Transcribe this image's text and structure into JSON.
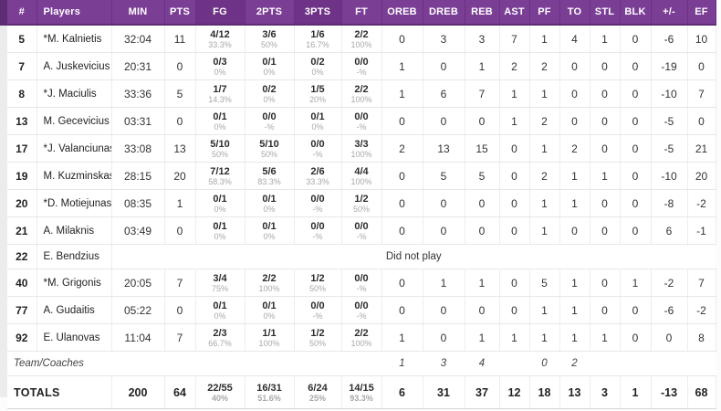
{
  "colors": {
    "header_bg": "#7b3e95",
    "header_alt": "#6e3386",
    "header_dark_edge": "#5e2c75",
    "gutter": "#ececec",
    "pct_text": "#a8a8a8",
    "row_border": "#e7e7e7"
  },
  "table": {
    "columns": [
      "#",
      "Players",
      "MIN",
      "PTS",
      "FG",
      "2PTS",
      "3PTS",
      "FT",
      "OREB",
      "DREB",
      "REB",
      "AST",
      "PF",
      "TO",
      "STL",
      "BLK",
      "+/-",
      "EF"
    ],
    "rows": [
      {
        "type": "player",
        "num": "5",
        "name": "*M. Kalnietis",
        "min": "32:04",
        "pts": "11",
        "fg": "4/12",
        "fg_pct": "33.3%",
        "p2": "3/6",
        "p2_pct": "50%",
        "p3": "1/6",
        "p3_pct": "16.7%",
        "ft": "2/2",
        "ft_pct": "100%",
        "oreb": "0",
        "dreb": "3",
        "reb": "3",
        "ast": "7",
        "pf": "1",
        "to": "4",
        "stl": "1",
        "blk": "0",
        "pm": "-6",
        "ef": "10"
      },
      {
        "type": "player",
        "num": "7",
        "name": "A. Juskevicius",
        "min": "20:31",
        "pts": "0",
        "fg": "0/3",
        "fg_pct": "0%",
        "p2": "0/1",
        "p2_pct": "0%",
        "p3": "0/2",
        "p3_pct": "0%",
        "ft": "0/0",
        "ft_pct": "-%",
        "oreb": "1",
        "dreb": "0",
        "reb": "1",
        "ast": "2",
        "pf": "2",
        "to": "0",
        "stl": "0",
        "blk": "0",
        "pm": "-19",
        "ef": "0"
      },
      {
        "type": "player",
        "num": "8",
        "name": "*J. Maciulis",
        "min": "33:36",
        "pts": "5",
        "fg": "1/7",
        "fg_pct": "14.3%",
        "p2": "0/2",
        "p2_pct": "0%",
        "p3": "1/5",
        "p3_pct": "20%",
        "ft": "2/2",
        "ft_pct": "100%",
        "oreb": "1",
        "dreb": "6",
        "reb": "7",
        "ast": "1",
        "pf": "1",
        "to": "0",
        "stl": "0",
        "blk": "0",
        "pm": "-10",
        "ef": "7"
      },
      {
        "type": "player",
        "num": "13",
        "name": "M. Gecevicius",
        "min": "03:31",
        "pts": "0",
        "fg": "0/1",
        "fg_pct": "0%",
        "p2": "0/0",
        "p2_pct": "-%",
        "p3": "0/1",
        "p3_pct": "0%",
        "ft": "0/0",
        "ft_pct": "-%",
        "oreb": "0",
        "dreb": "0",
        "reb": "0",
        "ast": "1",
        "pf": "2",
        "to": "0",
        "stl": "0",
        "blk": "0",
        "pm": "-5",
        "ef": "0"
      },
      {
        "type": "player",
        "num": "17",
        "name": "*J. Valanciunas",
        "min": "33:08",
        "pts": "13",
        "fg": "5/10",
        "fg_pct": "50%",
        "p2": "5/10",
        "p2_pct": "50%",
        "p3": "0/0",
        "p3_pct": "-%",
        "ft": "3/3",
        "ft_pct": "100%",
        "oreb": "2",
        "dreb": "13",
        "reb": "15",
        "ast": "0",
        "pf": "1",
        "to": "2",
        "stl": "0",
        "blk": "0",
        "pm": "-5",
        "ef": "21"
      },
      {
        "type": "player",
        "num": "19",
        "name": "M. Kuzminskas",
        "min": "28:15",
        "pts": "20",
        "fg": "7/12",
        "fg_pct": "58.3%",
        "p2": "5/6",
        "p2_pct": "83.3%",
        "p3": "2/6",
        "p3_pct": "33.3%",
        "ft": "4/4",
        "ft_pct": "100%",
        "oreb": "0",
        "dreb": "5",
        "reb": "5",
        "ast": "0",
        "pf": "2",
        "to": "1",
        "stl": "1",
        "blk": "0",
        "pm": "-10",
        "ef": "20"
      },
      {
        "type": "player",
        "num": "20",
        "name": "*D. Motiejunas",
        "min": "08:35",
        "pts": "1",
        "fg": "0/1",
        "fg_pct": "0%",
        "p2": "0/1",
        "p2_pct": "0%",
        "p3": "0/0",
        "p3_pct": "-%",
        "ft": "1/2",
        "ft_pct": "50%",
        "oreb": "0",
        "dreb": "0",
        "reb": "0",
        "ast": "0",
        "pf": "1",
        "to": "1",
        "stl": "0",
        "blk": "0",
        "pm": "-8",
        "ef": "-2"
      },
      {
        "type": "player",
        "num": "21",
        "name": "A. Milaknis",
        "min": "03:49",
        "pts": "0",
        "fg": "0/1",
        "fg_pct": "0%",
        "p2": "0/1",
        "p2_pct": "0%",
        "p3": "0/0",
        "p3_pct": "-%",
        "ft": "0/0",
        "ft_pct": "-%",
        "oreb": "0",
        "dreb": "0",
        "reb": "0",
        "ast": "0",
        "pf": "1",
        "to": "0",
        "stl": "0",
        "blk": "0",
        "pm": "6",
        "ef": "-1"
      },
      {
        "type": "dnp",
        "num": "22",
        "name": "E. Bendzius",
        "text": "Did not play"
      },
      {
        "type": "player",
        "num": "40",
        "name": "*M. Grigonis",
        "min": "20:05",
        "pts": "7",
        "fg": "3/4",
        "fg_pct": "75%",
        "p2": "2/2",
        "p2_pct": "100%",
        "p3": "1/2",
        "p3_pct": "50%",
        "ft": "0/0",
        "ft_pct": "-%",
        "oreb": "0",
        "dreb": "1",
        "reb": "1",
        "ast": "0",
        "pf": "5",
        "to": "1",
        "stl": "0",
        "blk": "1",
        "pm": "-2",
        "ef": "7"
      },
      {
        "type": "player",
        "num": "77",
        "name": "A. Gudaitis",
        "min": "05:22",
        "pts": "0",
        "fg": "0/1",
        "fg_pct": "0%",
        "p2": "0/1",
        "p2_pct": "0%",
        "p3": "0/0",
        "p3_pct": "-%",
        "ft": "0/0",
        "ft_pct": "-%",
        "oreb": "0",
        "dreb": "0",
        "reb": "0",
        "ast": "0",
        "pf": "1",
        "to": "1",
        "stl": "0",
        "blk": "0",
        "pm": "-6",
        "ef": "-2"
      },
      {
        "type": "player",
        "num": "92",
        "name": "E. Ulanovas",
        "min": "11:04",
        "pts": "7",
        "fg": "2/3",
        "fg_pct": "66.7%",
        "p2": "1/1",
        "p2_pct": "100%",
        "p3": "1/2",
        "p3_pct": "50%",
        "ft": "2/2",
        "ft_pct": "100%",
        "oreb": "1",
        "dreb": "0",
        "reb": "1",
        "ast": "1",
        "pf": "1",
        "to": "1",
        "stl": "1",
        "blk": "0",
        "pm": "0",
        "ef": "8"
      },
      {
        "type": "team",
        "label": "Team/Coaches",
        "oreb": "1",
        "dreb": "3",
        "reb": "4",
        "ast": "",
        "pf": "0",
        "to": "2",
        "stl": "",
        "blk": "",
        "pm": "",
        "ef": ""
      },
      {
        "type": "totals",
        "label": "TOTALS",
        "min": "200",
        "pts": "64",
        "fg": "22/55",
        "fg_pct": "40%",
        "p2": "16/31",
        "p2_pct": "51.6%",
        "p3": "6/24",
        "p3_pct": "25%",
        "ft": "14/15",
        "ft_pct": "93.3%",
        "oreb": "6",
        "dreb": "31",
        "reb": "37",
        "ast": "12",
        "pf": "18",
        "to": "13",
        "stl": "3",
        "blk": "1",
        "pm": "-13",
        "ef": "68"
      }
    ]
  }
}
